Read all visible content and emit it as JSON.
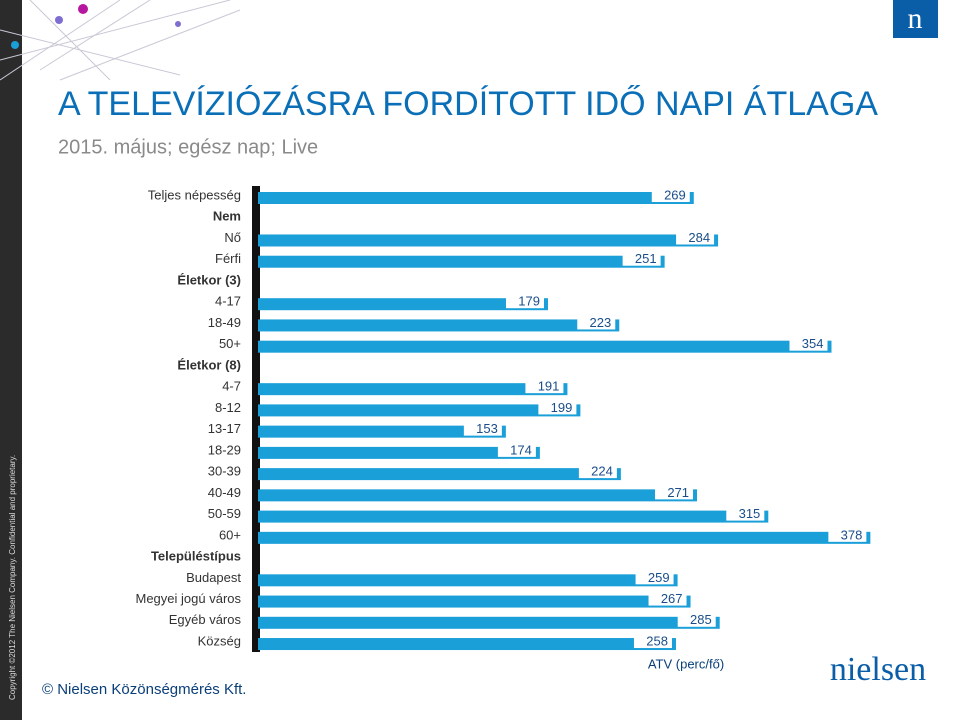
{
  "title": "A TELEVÍZIÓZÁSRA FORDÍTOTT IDŐ NAPI ÁTLAGA",
  "subtitle": "2015. május; egész nap; Live",
  "copyright": "Copyright ©2012 The Nielsen Company. Confidential and proprietary.",
  "footer": "© Nielsen Közönségmérés Kft.",
  "logo_text": "nielsen",
  "corner_logo": "n",
  "chart_data": {
    "type": "bar",
    "orientation": "horizontal",
    "categories": [
      "Teljes népesség",
      "Nem",
      "Nő",
      "Férfi",
      "Életkor (3)",
      "4-17",
      "18-49",
      "50+",
      "Életkor (8)",
      "4-7",
      "8-12",
      "13-17",
      "18-29",
      "30-39",
      "40-49",
      "50-59",
      "60+",
      "Településtípus",
      "Budapest",
      "Megyei jogú város",
      "Egyéb város",
      "Község"
    ],
    "values": [
      269,
      null,
      284,
      251,
      null,
      179,
      223,
      354,
      null,
      191,
      199,
      153,
      174,
      224,
      271,
      315,
      378,
      null,
      259,
      267,
      285,
      258
    ],
    "color": "#1a9fd9",
    "xlim": [
      0,
      400
    ],
    "xlabel": "ATV (perc/fő)"
  }
}
